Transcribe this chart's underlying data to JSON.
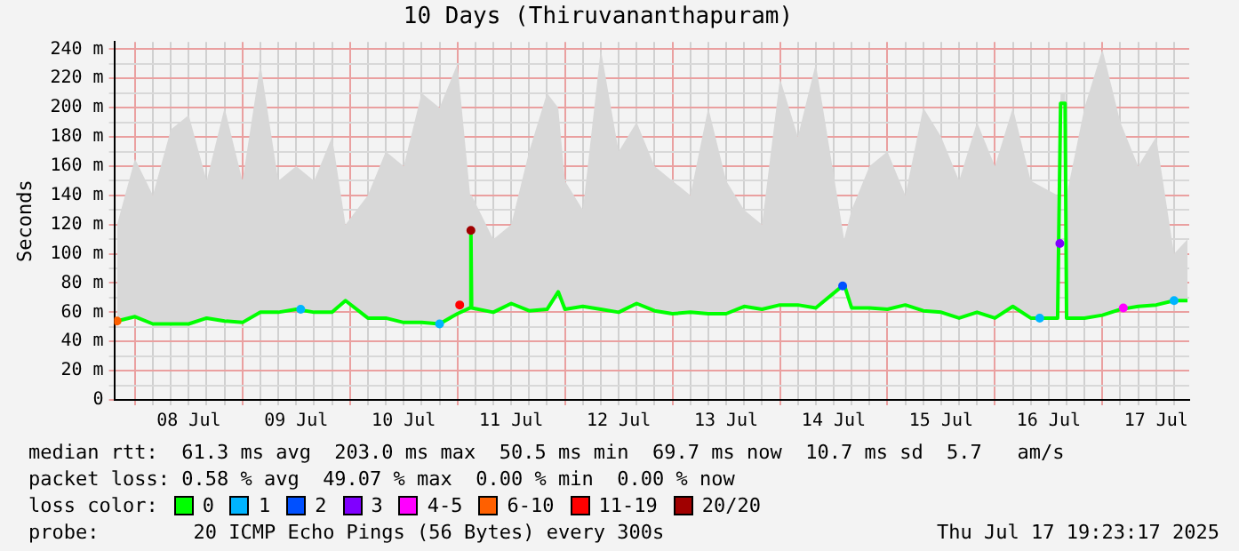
{
  "chart_data": {
    "type": "line",
    "title": "10 Days (Thiruvananthapuram)",
    "ylabel": "Seconds",
    "legend_title": "loss color:",
    "legend": "bottom",
    "grid": true,
    "xlim": [
      "2025-07-07T19:23",
      "2025-07-17T19:23"
    ],
    "xticks": [
      {
        "value": "2025-07-08T00:00",
        "label": null
      },
      {
        "value": "2025-07-08T04:00",
        "label": null
      },
      {
        "value": "2025-07-08T08:00",
        "label": null
      },
      {
        "value": "2025-07-08T12:00",
        "label": "08 Jul"
      },
      {
        "value": "2025-07-08T16:00",
        "label": null
      },
      {
        "value": "2025-07-08T20:00",
        "label": null
      },
      {
        "value": "2025-07-09T00:00",
        "label": null
      },
      {
        "value": "2025-07-09T04:00",
        "label": null
      },
      {
        "value": "2025-07-09T08:00",
        "label": null
      },
      {
        "value": "2025-07-09T12:00",
        "label": "09 Jul"
      },
      {
        "value": "2025-07-09T16:00",
        "label": null
      },
      {
        "value": "2025-07-09T20:00",
        "label": null
      },
      {
        "value": "2025-07-10T00:00",
        "label": null
      },
      {
        "value": "2025-07-10T04:00",
        "label": null
      },
      {
        "value": "2025-07-10T08:00",
        "label": null
      },
      {
        "value": "2025-07-10T12:00",
        "label": "10 Jul"
      },
      {
        "value": "2025-07-10T16:00",
        "label": null
      },
      {
        "value": "2025-07-10T20:00",
        "label": null
      },
      {
        "value": "2025-07-11T00:00",
        "label": null
      },
      {
        "value": "2025-07-11T04:00",
        "label": null
      },
      {
        "value": "2025-07-11T08:00",
        "label": null
      },
      {
        "value": "2025-07-11T12:00",
        "label": "11 Jul"
      },
      {
        "value": "2025-07-11T16:00",
        "label": null
      },
      {
        "value": "2025-07-11T20:00",
        "label": null
      },
      {
        "value": "2025-07-12T00:00",
        "label": null
      },
      {
        "value": "2025-07-12T04:00",
        "label": null
      },
      {
        "value": "2025-07-12T08:00",
        "label": null
      },
      {
        "value": "2025-07-12T12:00",
        "label": "12 Jul"
      },
      {
        "value": "2025-07-12T16:00",
        "label": null
      },
      {
        "value": "2025-07-12T20:00",
        "label": null
      },
      {
        "value": "2025-07-13T00:00",
        "label": null
      },
      {
        "value": "2025-07-13T04:00",
        "label": null
      },
      {
        "value": "2025-07-13T08:00",
        "label": null
      },
      {
        "value": "2025-07-13T12:00",
        "label": "13 Jul"
      },
      {
        "value": "2025-07-13T16:00",
        "label": null
      },
      {
        "value": "2025-07-13T20:00",
        "label": null
      },
      {
        "value": "2025-07-14T00:00",
        "label": null
      },
      {
        "value": "2025-07-14T04:00",
        "label": null
      },
      {
        "value": "2025-07-14T08:00",
        "label": null
      },
      {
        "value": "2025-07-14T12:00",
        "label": "14 Jul"
      },
      {
        "value": "2025-07-14T16:00",
        "label": null
      },
      {
        "value": "2025-07-14T20:00",
        "label": null
      },
      {
        "value": "2025-07-15T00:00",
        "label": null
      },
      {
        "value": "2025-07-15T04:00",
        "label": null
      },
      {
        "value": "2025-07-15T08:00",
        "label": null
      },
      {
        "value": "2025-07-15T12:00",
        "label": "15 Jul"
      },
      {
        "value": "2025-07-15T16:00",
        "label": null
      },
      {
        "value": "2025-07-15T20:00",
        "label": null
      },
      {
        "value": "2025-07-16T00:00",
        "label": null
      },
      {
        "value": "2025-07-16T04:00",
        "label": null
      },
      {
        "value": "2025-07-16T08:00",
        "label": null
      },
      {
        "value": "2025-07-16T12:00",
        "label": "16 Jul"
      },
      {
        "value": "2025-07-16T16:00",
        "label": null
      },
      {
        "value": "2025-07-16T20:00",
        "label": null
      },
      {
        "value": "2025-07-17T00:00",
        "label": null
      },
      {
        "value": "2025-07-17T04:00",
        "label": null
      },
      {
        "value": "2025-07-17T08:00",
        "label": null
      },
      {
        "value": "2025-07-17T12:00",
        "label": "17 Jul"
      },
      {
        "value": "2025-07-17T16:00",
        "label": null
      }
    ],
    "ylim": [
      0,
      245
    ],
    "yticks": [
      {
        "value": 0,
        "label": "0"
      },
      {
        "value": 10,
        "label": null
      },
      {
        "value": 20,
        "label": "20 m"
      },
      {
        "value": 30,
        "label": null
      },
      {
        "value": 40,
        "label": "40 m"
      },
      {
        "value": 50,
        "label": null
      },
      {
        "value": 60,
        "label": "60 m"
      },
      {
        "value": 70,
        "label": null
      },
      {
        "value": 80,
        "label": "80 m"
      },
      {
        "value": 90,
        "label": null
      },
      {
        "value": 100,
        "label": "100 m"
      },
      {
        "value": 110,
        "label": null
      },
      {
        "value": 120,
        "label": "120 m"
      },
      {
        "value": 130,
        "label": null
      },
      {
        "value": 140,
        "label": "140 m"
      },
      {
        "value": 150,
        "label": null
      },
      {
        "value": 160,
        "label": "160 m"
      },
      {
        "value": 170,
        "label": null
      },
      {
        "value": 180,
        "label": "180 m"
      },
      {
        "value": 190,
        "label": null
      },
      {
        "value": 200,
        "label": "200 m"
      },
      {
        "value": 210,
        "label": null
      },
      {
        "value": 220,
        "label": "220 m"
      },
      {
        "value": 230,
        "label": null
      },
      {
        "value": 240,
        "label": "240 m"
      }
    ],
    "x": [
      "2025-07-07T20:00",
      "2025-07-08T00:00",
      "2025-07-08T04:00",
      "2025-07-08T08:00",
      "2025-07-08T12:00",
      "2025-07-08T16:00",
      "2025-07-08T20:00",
      "2025-07-09T00:00",
      "2025-07-09T04:00",
      "2025-07-09T08:00",
      "2025-07-09T12:00",
      "2025-07-09T16:00",
      "2025-07-09T20:00",
      "2025-07-09T23:00",
      "2025-07-10T04:00",
      "2025-07-10T08:00",
      "2025-07-10T12:00",
      "2025-07-10T16:00",
      "2025-07-10T20:00",
      "2025-07-11T00:00",
      "2025-07-11T02:50",
      "2025-07-11T03:00",
      "2025-07-11T03:10",
      "2025-07-11T08:00",
      "2025-07-11T12:00",
      "2025-07-11T16:00",
      "2025-07-11T20:00",
      "2025-07-11T22:30",
      "2025-07-12T00:00",
      "2025-07-12T04:00",
      "2025-07-12T08:00",
      "2025-07-12T12:00",
      "2025-07-12T16:00",
      "2025-07-12T20:00",
      "2025-07-13T00:00",
      "2025-07-13T04:00",
      "2025-07-13T08:00",
      "2025-07-13T12:00",
      "2025-07-13T16:00",
      "2025-07-13T20:00",
      "2025-07-14T00:00",
      "2025-07-14T04:00",
      "2025-07-14T08:00",
      "2025-07-14T14:20",
      "2025-07-14T16:00",
      "2025-07-14T20:00",
      "2025-07-15T00:00",
      "2025-07-15T04:00",
      "2025-07-15T08:00",
      "2025-07-15T12:00",
      "2025-07-15T16:00",
      "2025-07-15T20:00",
      "2025-07-16T00:00",
      "2025-07-16T04:00",
      "2025-07-16T08:00",
      "2025-07-16T14:00",
      "2025-07-16T14:40",
      "2025-07-16T15:40",
      "2025-07-16T16:00",
      "2025-07-16T20:00",
      "2025-07-17T00:00",
      "2025-07-17T04:00",
      "2025-07-17T08:00",
      "2025-07-17T12:00",
      "2025-07-17T16:00",
      "2025-07-17T19:00"
    ],
    "series": [
      {
        "name": "0",
        "color": "#00ff00",
        "values": [
          54,
          57,
          52,
          52,
          52,
          56,
          54,
          53,
          60,
          60,
          62,
          60,
          60,
          68,
          56,
          56,
          53,
          53,
          52,
          59,
          63,
          116,
          63,
          60,
          66,
          61,
          62,
          74,
          62,
          64,
          62,
          60,
          66,
          61,
          59,
          60,
          59,
          59,
          64,
          62,
          65,
          65,
          63,
          79,
          63,
          63,
          62,
          65,
          61,
          60,
          56,
          60,
          56,
          64,
          56,
          56,
          203,
          203,
          56,
          56,
          58,
          62,
          64,
          65,
          68,
          68
        ],
        "lower": [
          54,
          57,
          52,
          52,
          52,
          56,
          54,
          53,
          60,
          60,
          62,
          60,
          60,
          68,
          56,
          56,
          53,
          53,
          52,
          59,
          63,
          116,
          63,
          60,
          66,
          61,
          62,
          74,
          62,
          64,
          62,
          60,
          66,
          61,
          59,
          60,
          59,
          59,
          64,
          62,
          65,
          65,
          63,
          79,
          63,
          63,
          62,
          65,
          61,
          60,
          56,
          60,
          56,
          64,
          56,
          56,
          203,
          203,
          56,
          56,
          58,
          62,
          64,
          65,
          68,
          68
        ],
        "upper": [
          120,
          165,
          140,
          185,
          195,
          150,
          200,
          150,
          230,
          150,
          160,
          150,
          180,
          120,
          140,
          170,
          160,
          210,
          200,
          230,
          140,
          140,
          140,
          110,
          120,
          170,
          210,
          200,
          150,
          130,
          240,
          170,
          190,
          160,
          150,
          140,
          200,
          150,
          130,
          120,
          220,
          180,
          230,
          110,
          130,
          160,
          170,
          140,
          200,
          180,
          150,
          190,
          160,
          200,
          150,
          140,
          210,
          210,
          140,
          200,
          240,
          190,
          160,
          180,
          100,
          110
        ]
      },
      {
        "name": "1",
        "color": "#00b4ff",
        "type": "scatter",
        "x": [
          "2025-07-09T13:00",
          "2025-07-10T20:00",
          "2025-07-16T10:00",
          "2025-07-17T16:00"
        ],
        "values": [
          62,
          52,
          56,
          68
        ]
      },
      {
        "name": "2",
        "color": "#0050ff",
        "type": "scatter",
        "x": [
          "2025-07-14T14:00"
        ],
        "values": [
          78
        ]
      },
      {
        "name": "3",
        "color": "#8000ff",
        "type": "scatter",
        "x": [
          "2025-07-16T14:30"
        ],
        "values": [
          107
        ]
      },
      {
        "name": "4-5",
        "color": "#ff00ff",
        "type": "scatter",
        "x": [
          "2025-07-17T04:40"
        ],
        "values": [
          63
        ]
      },
      {
        "name": "6-10",
        "color": "#ff6000",
        "type": "scatter",
        "x": [
          "2025-07-07T20:00"
        ],
        "values": [
          54
        ]
      },
      {
        "name": "11-19",
        "color": "#ff0000",
        "type": "scatter",
        "x": [
          "2025-07-11T00:30"
        ],
        "values": [
          65
        ]
      },
      {
        "name": "20/20",
        "color": "#a00000",
        "type": "scatter",
        "x": [
          "2025-07-11T03:00"
        ],
        "values": [
          116
        ]
      }
    ],
    "annotations": [
      "median rtt:  61.3 ms avg  203.0 ms max  50.5 ms min  69.7 ms now  10.7 ms sd  5.7   am/s",
      "packet loss: 0.58 % avg  49.07 % max  0.00 % min  0.00 % now",
      "probe:        20 ICMP Echo Pings (56 Bytes) every 300s",
      "Thu Jul 17 19:23:17 2025"
    ]
  }
}
